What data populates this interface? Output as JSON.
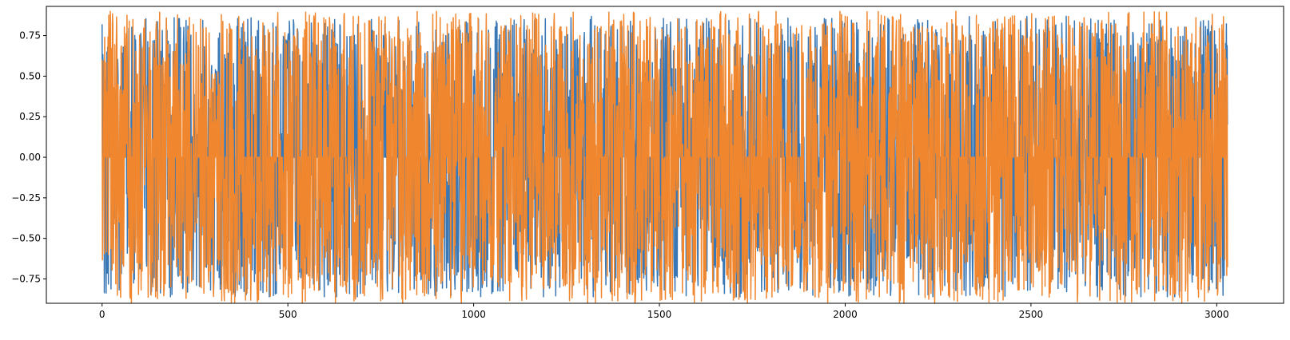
{
  "chart_data": {
    "type": "line",
    "title": "",
    "xlabel": "",
    "ylabel": "",
    "grid": false,
    "legend": "none",
    "xlim": [
      -150,
      3180
    ],
    "ylim": [
      -0.9,
      0.93
    ],
    "x_ticks": [
      0,
      500,
      1000,
      1500,
      2000,
      2500,
      3000
    ],
    "x_tick_labels": [
      "0",
      "500",
      "1000",
      "1500",
      "2000",
      "2500",
      "3000"
    ],
    "y_ticks": [
      -0.75,
      -0.5,
      -0.25,
      0.0,
      0.25,
      0.5,
      0.75
    ],
    "y_tick_labels": [
      "−0.75",
      "−0.50",
      "−0.25",
      "0.00",
      "0.25",
      "0.50",
      "0.75"
    ],
    "series": [
      {
        "color": "#3a78b5",
        "n_points": 3030,
        "x_start": 0,
        "x_end": 3029,
        "first_value": 0.82,
        "min": -0.86,
        "max": 0.87,
        "values_shape": "dense noisy oscillation between about -0.86 and 0.87"
      },
      {
        "color": "#f0862d",
        "n_points": 3030,
        "x_start": 0,
        "x_end": 3029,
        "first_value": 0.6,
        "min": -0.9,
        "max": 0.9,
        "values_shape": "dense noisy oscillation between about -0.9 and 0.9"
      }
    ]
  }
}
